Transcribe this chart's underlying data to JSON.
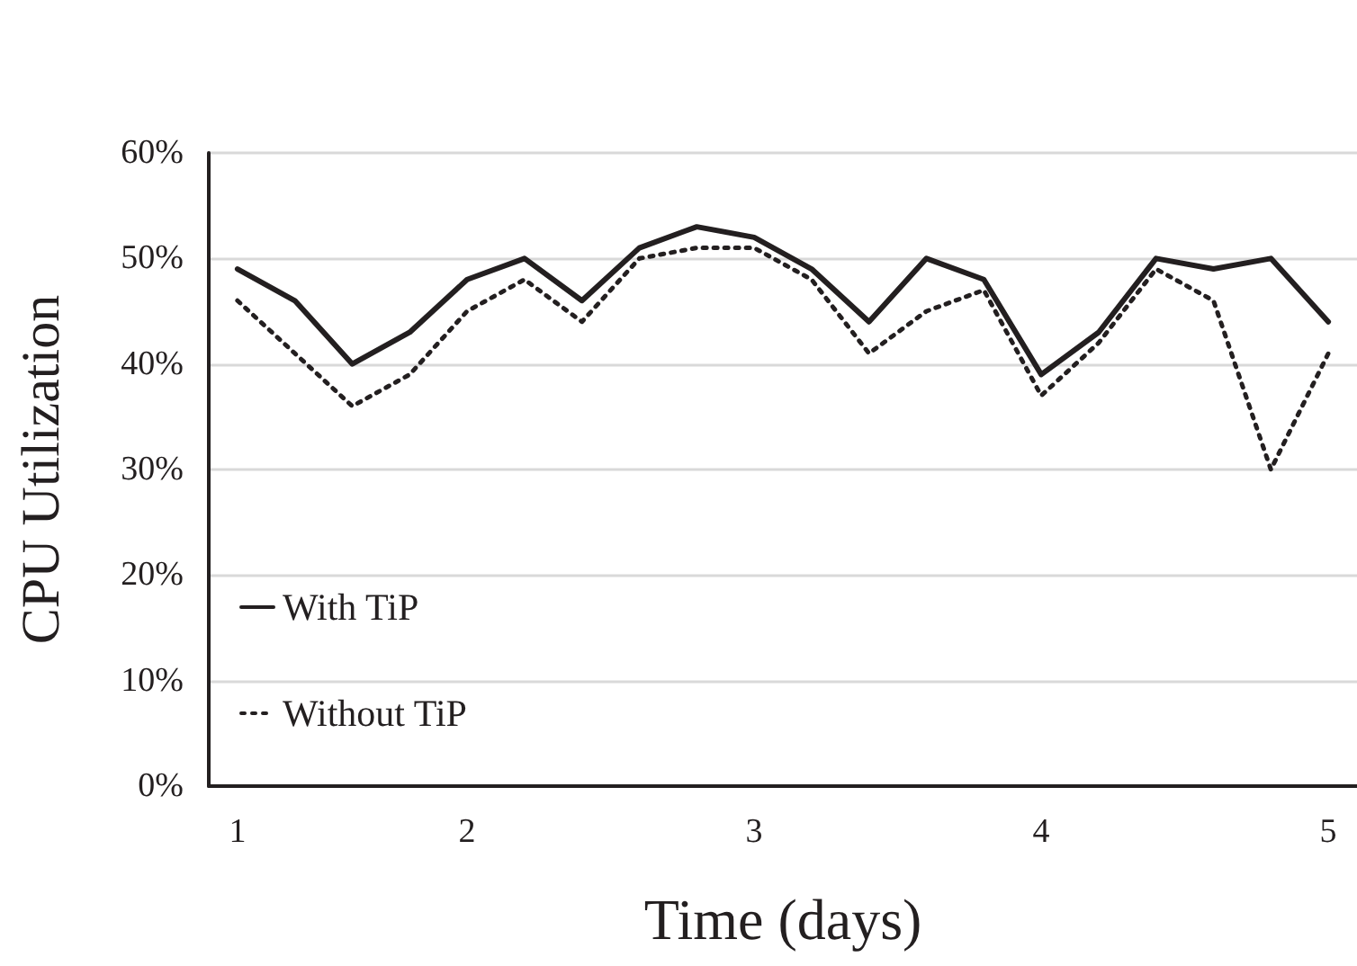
{
  "chart_data": {
    "type": "line",
    "xlabel": "Time (days)",
    "ylabel": "CPU Utilization",
    "categories": [
      "1",
      null,
      null,
      null,
      "2",
      null,
      null,
      null,
      null,
      "3",
      null,
      null,
      null,
      null,
      "4",
      null,
      null,
      null,
      null,
      "5"
    ],
    "series": [
      {
        "name": "With TiP",
        "color": "#231f20",
        "line_style": "solid",
        "values": [
          49,
          46,
          40,
          43,
          48,
          50,
          46,
          51,
          53,
          52,
          49,
          44,
          50,
          48,
          39,
          43,
          50,
          49,
          50,
          44
        ]
      },
      {
        "name": "Without TiP",
        "color": "#231f20",
        "line_style": "dotted",
        "values": [
          46,
          41,
          36,
          39,
          45,
          48,
          44,
          50,
          51,
          51,
          48,
          41,
          45,
          47,
          37,
          42,
          49,
          46,
          30,
          41
        ]
      }
    ],
    "ylim": [
      0,
      60
    ],
    "yticks": [
      {
        "value": 0,
        "label": "0%"
      },
      {
        "value": 10,
        "label": "10%"
      },
      {
        "value": 20,
        "label": "20%"
      },
      {
        "value": 30,
        "label": "30%"
      },
      {
        "value": 40,
        "label": "40%"
      },
      {
        "value": 50,
        "label": "50%"
      },
      {
        "value": 60,
        "label": "60%"
      }
    ],
    "grid": "y",
    "legend": "bottom left",
    "marker": "none"
  }
}
